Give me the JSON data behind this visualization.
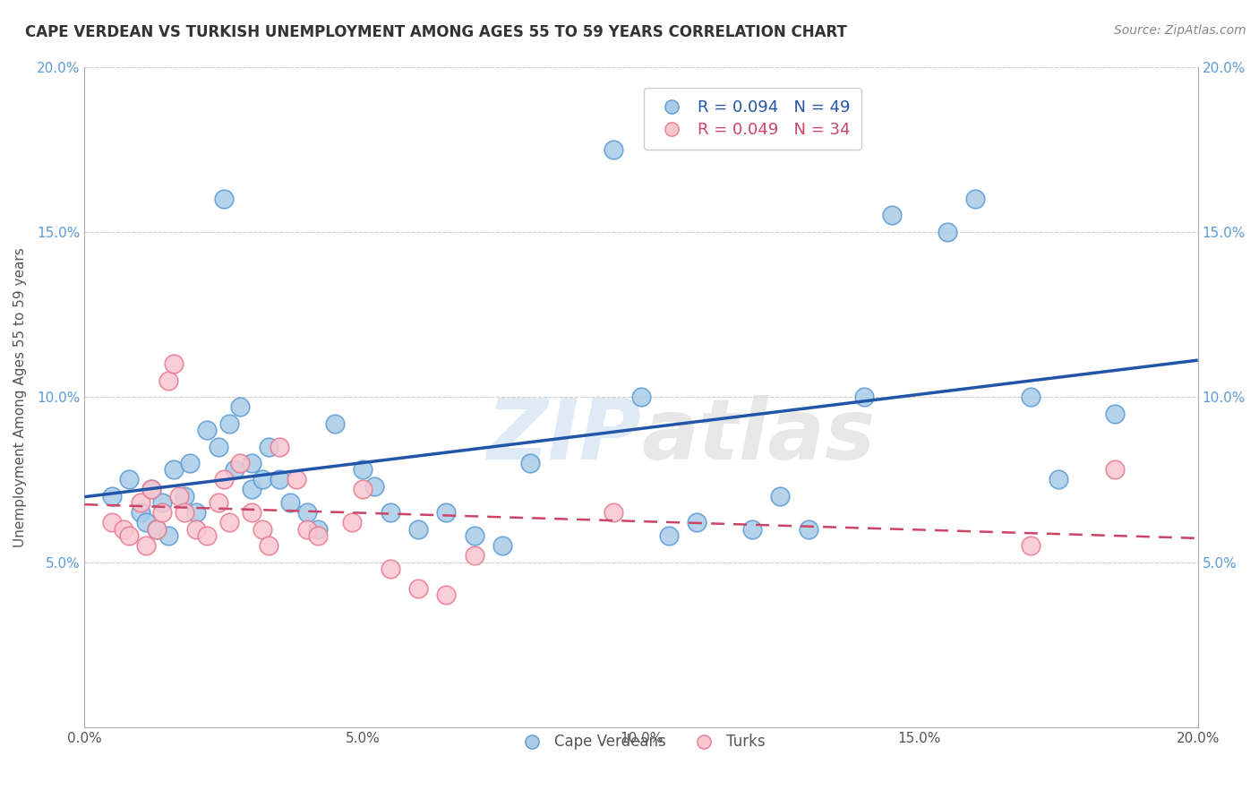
{
  "title": "CAPE VERDEAN VS TURKISH UNEMPLOYMENT AMONG AGES 55 TO 59 YEARS CORRELATION CHART",
  "source": "Source: ZipAtlas.com",
  "ylabel": "Unemployment Among Ages 55 to 59 years",
  "xlim": [
    0.0,
    0.2
  ],
  "ylim": [
    0.0,
    0.2
  ],
  "xtick_vals": [
    0.0,
    0.05,
    0.1,
    0.15,
    0.2
  ],
  "ytick_vals": [
    0.05,
    0.1,
    0.15,
    0.2
  ],
  "cape_verdean_color_fill": "#a8cce8",
  "cape_verdean_color_edge": "#5b9bd5",
  "turk_color_fill": "#f9c6d0",
  "turk_color_edge": "#e87a90",
  "trendline_cv_color": "#2255aa",
  "trendline_turk_color": "#cc4466",
  "watermark_zip": "ZIP",
  "watermark_atlas": "atlas",
  "legend_cv_R": "0.094",
  "legend_cv_N": "49",
  "legend_turk_R": "0.049",
  "legend_turk_N": "34",
  "cv_x": [
    0.005,
    0.008,
    0.01,
    0.011,
    0.012,
    0.013,
    0.014,
    0.015,
    0.016,
    0.018,
    0.019,
    0.02,
    0.022,
    0.024,
    0.025,
    0.026,
    0.027,
    0.028,
    0.03,
    0.03,
    0.032,
    0.033,
    0.035,
    0.037,
    0.04,
    0.042,
    0.045,
    0.05,
    0.052,
    0.055,
    0.06,
    0.065,
    0.07,
    0.075,
    0.08,
    0.095,
    0.1,
    0.105,
    0.11,
    0.12,
    0.125,
    0.13,
    0.14,
    0.145,
    0.155,
    0.16,
    0.17,
    0.175,
    0.185
  ],
  "cv_y": [
    0.07,
    0.075,
    0.065,
    0.062,
    0.072,
    0.06,
    0.068,
    0.058,
    0.078,
    0.07,
    0.08,
    0.065,
    0.09,
    0.085,
    0.16,
    0.092,
    0.078,
    0.097,
    0.08,
    0.072,
    0.075,
    0.085,
    0.075,
    0.068,
    0.065,
    0.06,
    0.092,
    0.078,
    0.073,
    0.065,
    0.06,
    0.065,
    0.058,
    0.055,
    0.08,
    0.175,
    0.1,
    0.058,
    0.062,
    0.06,
    0.07,
    0.06,
    0.1,
    0.155,
    0.15,
    0.16,
    0.1,
    0.075,
    0.095
  ],
  "turk_x": [
    0.005,
    0.007,
    0.008,
    0.01,
    0.011,
    0.012,
    0.013,
    0.014,
    0.015,
    0.016,
    0.017,
    0.018,
    0.02,
    0.022,
    0.024,
    0.025,
    0.026,
    0.028,
    0.03,
    0.032,
    0.033,
    0.035,
    0.038,
    0.04,
    0.042,
    0.048,
    0.05,
    0.055,
    0.06,
    0.065,
    0.07,
    0.095,
    0.17,
    0.185
  ],
  "turk_y": [
    0.062,
    0.06,
    0.058,
    0.068,
    0.055,
    0.072,
    0.06,
    0.065,
    0.105,
    0.11,
    0.07,
    0.065,
    0.06,
    0.058,
    0.068,
    0.075,
    0.062,
    0.08,
    0.065,
    0.06,
    0.055,
    0.085,
    0.075,
    0.06,
    0.058,
    0.062,
    0.072,
    0.048,
    0.042,
    0.04,
    0.052,
    0.065,
    0.055,
    0.078
  ]
}
